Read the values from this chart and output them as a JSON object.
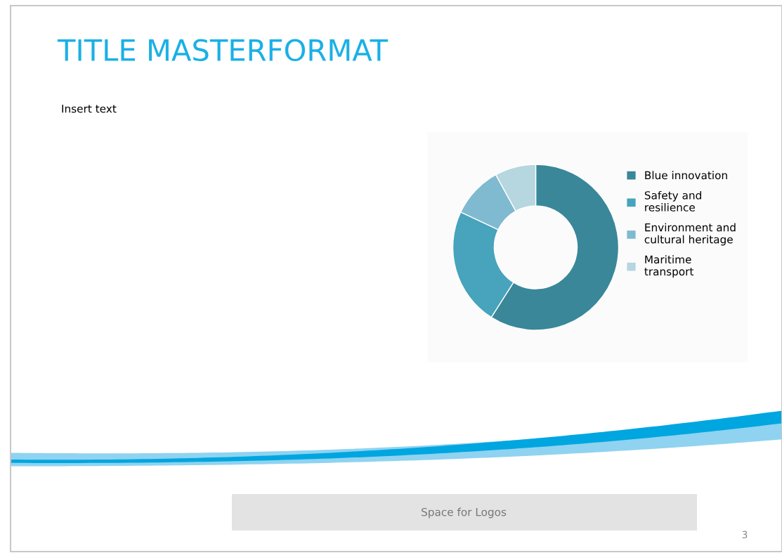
{
  "chart_data": {
    "type": "donut",
    "title": "TITLE MASTERFORMAT",
    "categories": [
      "Blue innovation",
      "Safety and\nresilience",
      "Environment and\ncultural heritage",
      "Maritime\ntransport"
    ],
    "values": [
      59,
      23,
      10,
      8
    ],
    "colors": [
      "#3a8799",
      "#48a3bc",
      "#7fbad0",
      "#b6d6e0"
    ],
    "legend": "right",
    "annotations": [
      "Insert text",
      "Space for Logos",
      "3"
    ]
  }
}
